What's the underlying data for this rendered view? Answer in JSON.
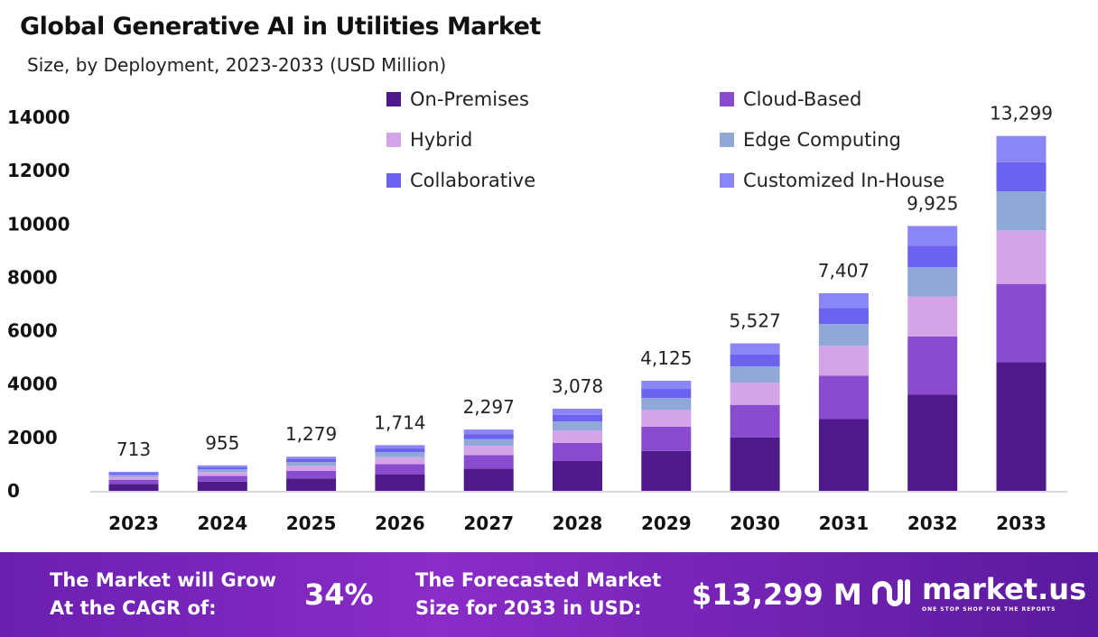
{
  "chart_data": {
    "type": "bar",
    "stacked": true,
    "title": "Global Generative AI in Utilities Market",
    "subtitle": "Size, by Deployment, 2023-2033 (USD Million)",
    "categories": [
      "2023",
      "2024",
      "2025",
      "2026",
      "2027",
      "2028",
      "2029",
      "2030",
      "2031",
      "2032",
      "2033"
    ],
    "totals": [
      "713",
      "955",
      "1,279",
      "1,714",
      "2,297",
      "3,078",
      "4,125",
      "5,527",
      "7,407",
      "9,925",
      "13,299"
    ],
    "ylim": [
      0,
      14000
    ],
    "yticks": [
      "0",
      "2000",
      "4000",
      "6000",
      "8000",
      "10000",
      "12000",
      "14000"
    ],
    "grid": false,
    "legend_position": "top-right",
    "series": [
      {
        "name": "On-Premises",
        "color": "#4e1a8a",
        "values": [
          259,
          347,
          464,
          622,
          834,
          1117,
          1497,
          2006,
          2689,
          3603,
          4828
        ]
      },
      {
        "name": "Cloud-Based",
        "color": "#8a4ccf",
        "values": [
          157,
          210,
          281,
          377,
          505,
          677,
          908,
          1216,
          1630,
          2184,
          2926
        ]
      },
      {
        "name": "Hybrid",
        "color": "#d4a4e8",
        "values": [
          108,
          144,
          193,
          259,
          347,
          465,
          623,
          835,
          1118,
          1499,
          2008
        ]
      },
      {
        "name": "Edge Computing",
        "color": "#8fa8d8",
        "values": [
          78,
          105,
          141,
          189,
          253,
          339,
          454,
          608,
          815,
          1092,
          1463
        ]
      },
      {
        "name": "Collaborative",
        "color": "#6b63f0",
        "values": [
          58,
          78,
          105,
          141,
          188,
          252,
          338,
          453,
          607,
          814,
          1091
        ]
      },
      {
        "name": "Customized In-House",
        "color": "#8b86f5",
        "values": [
          53,
          71,
          95,
          126,
          170,
          228,
          305,
          409,
          548,
          733,
          983
        ]
      }
    ]
  },
  "footer": {
    "cagr_label": [
      "The Market will Grow",
      "At the CAGR of:"
    ],
    "cagr_value": "34%",
    "forecast_label": [
      "The Forecasted Market",
      "Size for 2033 in USD:"
    ],
    "forecast_value": "$13,299 M",
    "brand": "market.us",
    "tagline": "ONE STOP SHOP FOR THE REPORTS"
  }
}
